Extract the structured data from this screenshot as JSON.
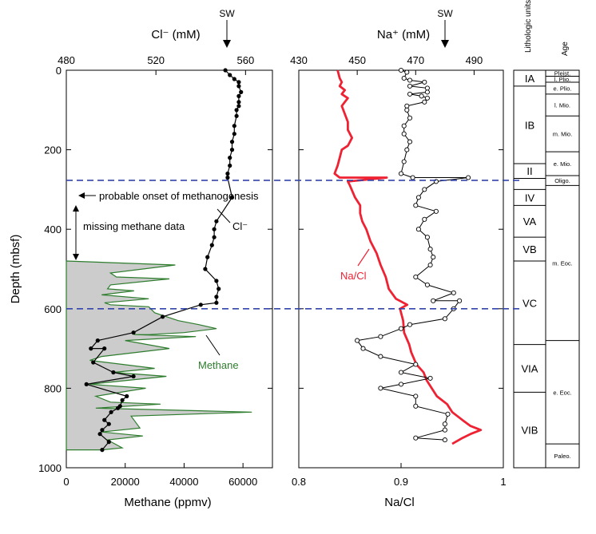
{
  "colors": {
    "methane_fill": "#cccccc",
    "methane_line": "#2e7d2e",
    "chloride": "#000000",
    "na_cl": "#ee2233",
    "sodium": "#000000",
    "boundary": "#3344aa"
  },
  "chart_data": [
    {
      "id": "left-panel",
      "type": "line",
      "ylabel": "Depth (mbsf)",
      "ylim": [
        1000,
        0
      ],
      "yticks": [
        0,
        200,
        400,
        600,
        800,
        1000
      ],
      "top_axis": {
        "label": "Cl⁻ (mM)",
        "lim": [
          480,
          572
        ],
        "ticks": [
          480,
          520,
          560
        ]
      },
      "bottom_axis": {
        "label": "Methane (ppmv)",
        "lim": [
          0,
          70000
        ],
        "ticks": [
          0,
          20000,
          40000,
          60000
        ]
      },
      "seawater_label": "SW",
      "seawater_cl": 559,
      "series": [
        {
          "name": "Cl⁻",
          "axis": "top",
          "points": [
            [
              551,
              0
            ],
            [
              553,
              12
            ],
            [
              555,
              22
            ],
            [
              557,
              30
            ],
            [
              557,
              40
            ],
            [
              558,
              55
            ],
            [
              557,
              65
            ],
            [
              557,
              80
            ],
            [
              557,
              90
            ],
            [
              556,
              100
            ],
            [
              556,
              115
            ],
            [
              555,
              140
            ],
            [
              555,
              160
            ],
            [
              554,
              180
            ],
            [
              554,
              200
            ],
            [
              553,
              220
            ],
            [
              553,
              240
            ],
            [
              552,
              260
            ],
            [
              552,
              270
            ],
            [
              554,
              320
            ],
            [
              547,
              380
            ],
            [
              546,
              400
            ],
            [
              546,
              420
            ],
            [
              545,
              440
            ],
            [
              543,
              470
            ],
            [
              542,
              500
            ],
            [
              547,
              530
            ],
            [
              548,
              550
            ],
            [
              547,
              570
            ],
            [
              547,
              585
            ],
            [
              540,
              590
            ],
            [
              523,
              620
            ],
            [
              510,
              660
            ],
            [
              494,
              680
            ],
            [
              491,
              700
            ],
            [
              497,
              700
            ],
            [
              492,
              735
            ],
            [
              501,
              760
            ],
            [
              510,
              770
            ],
            [
              489,
              790
            ],
            [
              507,
              820
            ],
            [
              505,
              830
            ],
            [
              504,
              845
            ],
            [
              503,
              850
            ],
            [
              500,
              860
            ],
            [
              497,
              880
            ],
            [
              499,
              890
            ],
            [
              496,
              905
            ],
            [
              495,
              915
            ],
            [
              499,
              935
            ],
            [
              496,
              955
            ]
          ]
        },
        {
          "name": "Methane",
          "axis": "bottom",
          "points": [
            [
              0,
              480
            ],
            [
              37000,
              490
            ],
            [
              15000,
              510
            ],
            [
              17000,
              520
            ],
            [
              35000,
              525
            ],
            [
              15000,
              540
            ],
            [
              14000,
              550
            ],
            [
              23000,
              555
            ],
            [
              12000,
              565
            ],
            [
              28000,
              575
            ],
            [
              13000,
              585
            ],
            [
              15000,
              590
            ],
            [
              28000,
              595
            ],
            [
              30000,
              610
            ],
            [
              38000,
              630
            ],
            [
              45000,
              640
            ],
            [
              51000,
              650
            ],
            [
              40000,
              660
            ],
            [
              28000,
              665
            ],
            [
              23000,
              665
            ],
            [
              44000,
              670
            ],
            [
              20000,
              680
            ],
            [
              35000,
              700
            ],
            [
              12000,
              720
            ],
            [
              8000,
              730
            ],
            [
              30000,
              750
            ],
            [
              16000,
              760
            ],
            [
              34000,
              770
            ],
            [
              8000,
              790
            ],
            [
              27000,
              800
            ],
            [
              10000,
              820
            ],
            [
              15000,
              835
            ],
            [
              32000,
              840
            ],
            [
              10000,
              850
            ],
            [
              63000,
              860
            ],
            [
              22000,
              870
            ],
            [
              25000,
              900
            ],
            [
              12000,
              910
            ],
            [
              26000,
              920
            ],
            [
              14000,
              930
            ],
            [
              19000,
              950
            ],
            [
              12000,
              955
            ],
            [
              0,
              955
            ]
          ]
        }
      ],
      "annotations": {
        "onset": "probable onset of methanogenesis",
        "missing": "missing methane data",
        "cl_label": "Cl⁻",
        "methane_label": "Methane"
      }
    },
    {
      "id": "right-panel",
      "type": "line",
      "ylim": [
        1000,
        0
      ],
      "yticks": [
        0,
        200,
        400,
        600,
        800,
        1000
      ],
      "top_axis": {
        "label": "Na⁺ (mM)",
        "lim": [
          430,
          500
        ],
        "ticks": [
          430,
          450,
          470,
          490
        ]
      },
      "bottom_axis": {
        "label": "Na/Cl",
        "lim": [
          0.8,
          1.0
        ],
        "ticks": [
          0.8,
          0.9,
          1.0
        ]
      },
      "seawater_label": "SW",
      "seawater_na": 480,
      "series": [
        {
          "name": "Na⁺",
          "axis": "top",
          "points": [
            [
              465,
              0
            ],
            [
              467,
              5
            ],
            [
              466,
              20
            ],
            [
              468,
              25
            ],
            [
              473,
              30
            ],
            [
              468,
              40
            ],
            [
              474,
              45
            ],
            [
              474,
              55
            ],
            [
              468,
              60
            ],
            [
              472,
              65
            ],
            [
              474,
              70
            ],
            [
              473,
              80
            ],
            [
              467,
              90
            ],
            [
              467,
              100
            ],
            [
              468,
              120
            ],
            [
              466,
              140
            ],
            [
              466,
              160
            ],
            [
              468,
              180
            ],
            [
              467,
              200
            ],
            [
              466,
              230
            ],
            [
              465,
              260
            ],
            [
              469,
              270
            ],
            [
              488,
              270
            ],
            [
              477,
              280
            ],
            [
              473,
              300
            ],
            [
              471,
              320
            ],
            [
              470,
              340
            ],
            [
              477,
              355
            ],
            [
              473,
              375
            ],
            [
              471,
              400
            ],
            [
              474,
              420
            ],
            [
              475,
              450
            ],
            [
              476,
              470
            ],
            [
              475,
              490
            ],
            [
              470,
              520
            ],
            [
              474,
              540
            ],
            [
              483,
              560
            ],
            [
              476,
              580
            ],
            [
              485,
              580
            ],
            [
              483,
              600
            ],
            [
              480,
              625
            ],
            [
              468,
              640
            ],
            [
              465,
              650
            ],
            [
              458,
              670
            ],
            [
              450,
              680
            ],
            [
              452,
              700
            ],
            [
              458,
              720
            ],
            [
              470,
              740
            ],
            [
              465,
              760
            ],
            [
              475,
              775
            ],
            [
              465,
              790
            ],
            [
              458,
              800
            ],
            [
              470,
              820
            ],
            [
              470,
              845
            ],
            [
              481,
              865
            ],
            [
              480,
              890
            ],
            [
              480,
              905
            ],
            [
              470,
              925
            ],
            [
              480,
              930
            ]
          ]
        },
        {
          "name": "Na/Cl",
          "axis": "bottom",
          "points": [
            [
              0.838,
              0
            ],
            [
              0.84,
              20
            ],
            [
              0.842,
              30
            ],
            [
              0.84,
              40
            ],
            [
              0.845,
              50
            ],
            [
              0.842,
              60
            ],
            [
              0.848,
              70
            ],
            [
              0.845,
              80
            ],
            [
              0.842,
              90
            ],
            [
              0.845,
              110
            ],
            [
              0.848,
              130
            ],
            [
              0.848,
              150
            ],
            [
              0.852,
              170
            ],
            [
              0.848,
              190
            ],
            [
              0.842,
              200
            ],
            [
              0.84,
              220
            ],
            [
              0.838,
              240
            ],
            [
              0.835,
              260
            ],
            [
              0.84,
              270
            ],
            [
              0.886,
              270
            ],
            [
              0.848,
              280
            ],
            [
              0.85,
              290
            ],
            [
              0.855,
              320
            ],
            [
              0.86,
              340
            ],
            [
              0.86,
              360
            ],
            [
              0.862,
              380
            ],
            [
              0.866,
              400
            ],
            [
              0.87,
              430
            ],
            [
              0.876,
              460
            ],
            [
              0.88,
              490
            ],
            [
              0.885,
              520
            ],
            [
              0.888,
              550
            ],
            [
              0.895,
              575
            ],
            [
              0.906,
              590
            ],
            [
              0.899,
              600
            ],
            [
              0.902,
              630
            ],
            [
              0.903,
              660
            ],
            [
              0.908,
              690
            ],
            [
              0.91,
              710
            ],
            [
              0.915,
              740
            ],
            [
              0.922,
              760
            ],
            [
              0.925,
              780
            ],
            [
              0.93,
              800
            ],
            [
              0.935,
              820
            ],
            [
              0.945,
              840
            ],
            [
              0.95,
              860
            ],
            [
              0.96,
              880
            ],
            [
              0.968,
              895
            ],
            [
              0.978,
              905
            ],
            [
              0.968,
              915
            ],
            [
              0.96,
              925
            ],
            [
              0.95,
              940
            ]
          ]
        }
      ],
      "annotations": {
        "nacl_label": "Na/Cl"
      }
    }
  ],
  "boundaries": [
    277,
    600
  ],
  "lithology": {
    "header": "Lithologic units/subunits",
    "units": [
      {
        "label": "IA",
        "top": 0,
        "bottom": 40
      },
      {
        "label": "IB",
        "top": 40,
        "bottom": 235
      },
      {
        "label": "II",
        "top": 235,
        "bottom": 272
      },
      {
        "label": "",
        "top": 272,
        "bottom": 300
      },
      {
        "label": "IV",
        "top": 300,
        "bottom": 340
      },
      {
        "label": "VA",
        "top": 340,
        "bottom": 420
      },
      {
        "label": "VB",
        "top": 420,
        "bottom": 480
      },
      {
        "label": "VC",
        "top": 480,
        "bottom": 690
      },
      {
        "label": "VIA",
        "top": 690,
        "bottom": 810
      },
      {
        "label": "VIB",
        "top": 810,
        "bottom": 1000
      }
    ]
  },
  "age": {
    "header": "Age",
    "units": [
      {
        "label": "Pleist.",
        "top": 0,
        "bottom": 15
      },
      {
        "label": "l. Plio.",
        "top": 15,
        "bottom": 30
      },
      {
        "label": "e. Plio.",
        "top": 30,
        "bottom": 60
      },
      {
        "label": "l. Mio.",
        "top": 60,
        "bottom": 115
      },
      {
        "label": "m. Mio.",
        "top": 115,
        "bottom": 205
      },
      {
        "label": "e. Mio.",
        "top": 205,
        "bottom": 265
      },
      {
        "label": "Oligo.",
        "top": 265,
        "bottom": 290
      },
      {
        "label": "m. Eoc.",
        "top": 290,
        "bottom": 680
      },
      {
        "label": "e. Eoc.",
        "top": 680,
        "bottom": 940
      },
      {
        "label": "Paleo.",
        "top": 940,
        "bottom": 1000
      }
    ]
  }
}
